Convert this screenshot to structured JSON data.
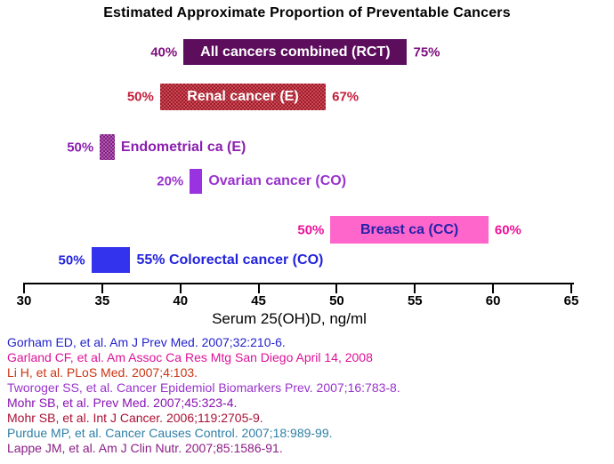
{
  "title": "Estimated Approximate Proportion of Preventable Cancers",
  "chart_data": {
    "type": "bar",
    "subtype": "horizontal-range-bars",
    "title": "Estimated Approximate Proportion of Preventable Cancers",
    "xlabel": "Serum 25(OH)D, ng/ml",
    "xlim": [
      30,
      65
    ],
    "xticks": [
      30,
      35,
      40,
      45,
      50,
      55,
      60,
      65
    ],
    "grid": false,
    "bars": [
      {
        "name": "All cancers combined (RCT)",
        "x0": 40.2,
        "x1": 54.5,
        "left_pct": "40%",
        "right_pct": "75%",
        "bar_color": "#5c0d5c",
        "pattern_color": "",
        "label_inside": true,
        "inside_text_color": "#ffffff",
        "pct_color": "#7d0f7d",
        "side_text_color": "#7d0f7d"
      },
      {
        "name": "Renal cancer (E)",
        "x0": 38.7,
        "x1": 49.3,
        "left_pct": "50%",
        "right_pct": "67%",
        "bar_color": "#cf4753",
        "pattern_color": "#9a1f2e",
        "label_inside": true,
        "inside_text_color": "#ffffff",
        "pct_color": "#c21d3a",
        "side_text_color": "#c21d3a"
      },
      {
        "name": "Endometrial ca (E)",
        "x0": 34.85,
        "x1": 35.8,
        "left_pct": "50%",
        "right_pct": "",
        "bar_color": "#b35cb3",
        "pattern_color": "#7d217d",
        "label_inside": false,
        "inside_text_color": "#8b1fae",
        "pct_color": "#8b1fae",
        "side_text_color": "#8b1fae"
      },
      {
        "name": "Ovarian cancer (CO)",
        "x0": 40.6,
        "x1": 41.4,
        "left_pct": "20%",
        "right_pct": "",
        "bar_color": "#9933e0",
        "pattern_color": "",
        "label_inside": false,
        "inside_text_color": "#9933cc",
        "pct_color": "#9933cc",
        "side_text_color": "#9933cc"
      },
      {
        "name": "Breast ca (CC)",
        "x0": 49.6,
        "x1": 59.7,
        "left_pct": "50%",
        "right_pct": "60%",
        "bar_color": "#ff66cc",
        "pattern_color": "",
        "label_inside": true,
        "inside_text_color": "#2323aa",
        "pct_color": "#ee1199",
        "side_text_color": "#ee1199"
      },
      {
        "name": "Colorectal cancer (CO)",
        "x0": 34.3,
        "x1": 36.8,
        "left_pct": "50%",
        "right_pct": "55%",
        "bar_color": "#3333ee",
        "pattern_color": "",
        "label_inside": false,
        "inside_text_color": "#2222dd",
        "pct_color": "#2222dd",
        "side_text_color": "#2222dd"
      }
    ]
  },
  "references": [
    {
      "text": "Gorham ED, et al. Am J Prev Med. 2007;32:210-6.",
      "color": "#2222cc"
    },
    {
      "text": "Garland CF, et al. Am Assoc Ca Res Mtg San Diego April 14, 2008",
      "color": "#dd1199"
    },
    {
      "text": "Li H, et al. PLoS Med. 2007;4:103.",
      "color": "#cc3311"
    },
    {
      "text": "Tworoger SS, et al. Cancer Epidemiol Biomarkers Prev. 2007;16:783-8.",
      "color": "#9933cc"
    },
    {
      "text": "Mohr SB, et al. Prev Med. 2007;45:323-4.",
      "color": "#8812b2"
    },
    {
      "text": "Mohr SB, et al.  Int J Cancer. 2006;119:2705-9.",
      "color": "#aa1133"
    },
    {
      "text": "Purdue MP, et al. Cancer Causes Control. 2007;18:989-99.",
      "color": "#2e7fa6"
    },
    {
      "text": "Lappe JM, et al. Am J Clin Nutr. 2007;85:1586-91.",
      "color": "#8b1d86"
    }
  ]
}
